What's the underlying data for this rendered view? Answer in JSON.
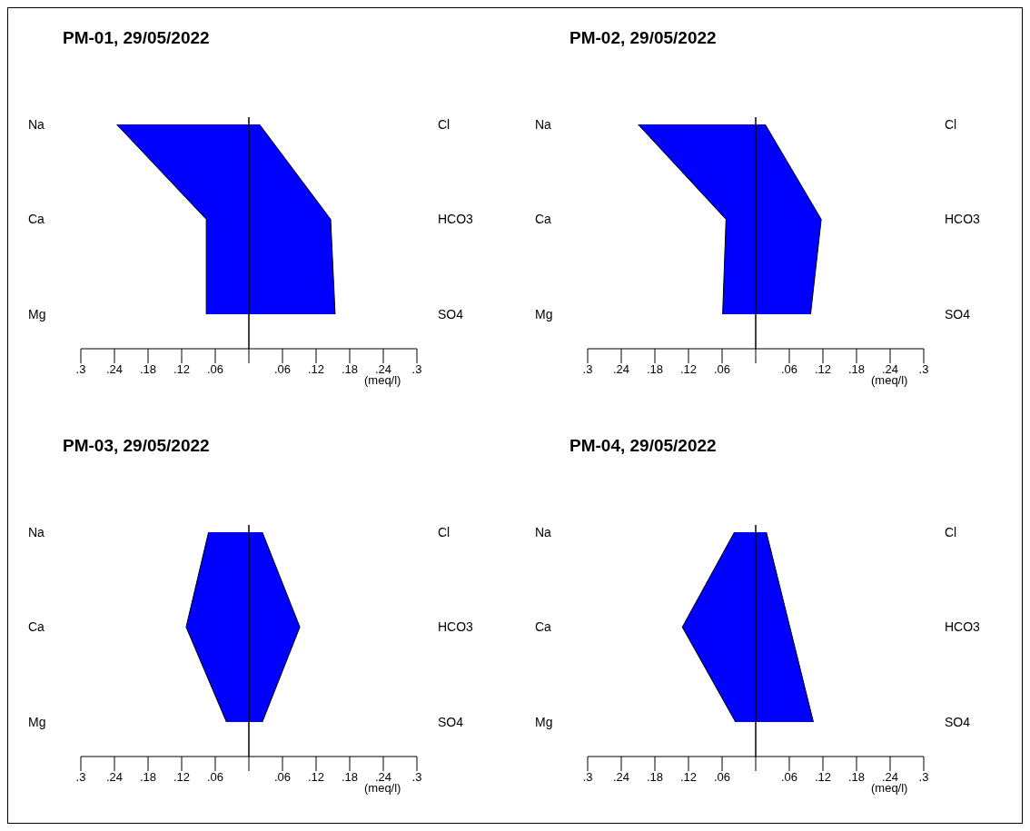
{
  "chart_data": [
    {
      "type": "area",
      "orientation": "horizontal",
      "title": "PM-01, 29/05/2022",
      "categories": [
        "Na",
        "Ca",
        "Mg"
      ],
      "y2_categories": [
        "Cl",
        "HCO3",
        "SO4"
      ],
      "xlabel": "(meq/l)",
      "xlim": [
        -0.3,
        0.3
      ],
      "xticks": [
        {
          "value": -0.3,
          "label": ".3"
        },
        {
          "value": -0.24,
          "label": ".24"
        },
        {
          "value": -0.18,
          "label": ".18"
        },
        {
          "value": -0.12,
          "label": ".12"
        },
        {
          "value": -0.06,
          "label": ".06"
        },
        {
          "value": 0,
          "label": null
        },
        {
          "value": 0.06,
          "label": ".06"
        },
        {
          "value": 0.12,
          "label": ".12"
        },
        {
          "value": 0.18,
          "label": ".18"
        },
        {
          "value": 0.24,
          "label": ".24"
        },
        {
          "value": 0.3,
          "label": ".3"
        }
      ],
      "ref_lines": [
        {
          "axis": "x",
          "value": 0,
          "color": "#000000"
        }
      ],
      "series": [
        {
          "color": "#0000ff",
          "values": [
            -0.236,
            -0.076,
            -0.076
          ]
        },
        {
          "color": "#0000ff",
          "values": [
            0.019,
            0.146,
            0.154
          ]
        }
      ]
    },
    {
      "type": "area",
      "orientation": "horizontal",
      "title": "PM-02, 29/05/2022",
      "categories": [
        "Na",
        "Ca",
        "Mg"
      ],
      "y2_categories": [
        "Cl",
        "HCO3",
        "SO4"
      ],
      "xlabel": "(meq/l)",
      "xlim": [
        -0.3,
        0.3
      ],
      "xticks": [
        {
          "value": -0.3,
          "label": ".3"
        },
        {
          "value": -0.24,
          "label": ".24"
        },
        {
          "value": -0.18,
          "label": ".18"
        },
        {
          "value": -0.12,
          "label": ".12"
        },
        {
          "value": -0.06,
          "label": ".06"
        },
        {
          "value": 0,
          "label": null
        },
        {
          "value": 0.06,
          "label": ".06"
        },
        {
          "value": 0.12,
          "label": ".12"
        },
        {
          "value": 0.18,
          "label": ".18"
        },
        {
          "value": 0.24,
          "label": ".24"
        },
        {
          "value": 0.3,
          "label": ".3"
        }
      ],
      "ref_lines": [
        {
          "axis": "x",
          "value": 0,
          "color": "#000000"
        }
      ],
      "series": [
        {
          "color": "#0000ff",
          "values": [
            -0.21,
            -0.053,
            -0.059
          ]
        },
        {
          "color": "#0000ff",
          "values": [
            0.017,
            0.117,
            0.098
          ]
        }
      ]
    },
    {
      "type": "area",
      "orientation": "horizontal",
      "title": "PM-03, 29/05/2022",
      "categories": [
        "Na",
        "Ca",
        "Mg"
      ],
      "y2_categories": [
        "Cl",
        "HCO3",
        "SO4"
      ],
      "xlabel": "(meq/l)",
      "xlim": [
        -0.3,
        0.3
      ],
      "xticks": [
        {
          "value": -0.3,
          "label": ".3"
        },
        {
          "value": -0.24,
          "label": ".24"
        },
        {
          "value": -0.18,
          "label": ".18"
        },
        {
          "value": -0.12,
          "label": ".12"
        },
        {
          "value": -0.06,
          "label": ".06"
        },
        {
          "value": 0,
          "label": null
        },
        {
          "value": 0.06,
          "label": ".06"
        },
        {
          "value": 0.12,
          "label": ".12"
        },
        {
          "value": 0.18,
          "label": ".18"
        },
        {
          "value": 0.24,
          "label": ".24"
        },
        {
          "value": 0.3,
          "label": ".3"
        }
      ],
      "ref_lines": [
        {
          "axis": "x",
          "value": 0,
          "color": "#000000"
        }
      ],
      "series": [
        {
          "color": "#0000ff",
          "values": [
            -0.072,
            -0.112,
            -0.04
          ]
        },
        {
          "color": "#0000ff",
          "values": [
            0.024,
            0.091,
            0.024
          ]
        }
      ]
    },
    {
      "type": "area",
      "orientation": "horizontal",
      "title": "PM-04, 29/05/2022",
      "categories": [
        "Na",
        "Ca",
        "Mg"
      ],
      "y2_categories": [
        "Cl",
        "HCO3",
        "SO4"
      ],
      "xlabel": "(meq/l)",
      "xlim": [
        -0.3,
        0.3
      ],
      "xticks": [
        {
          "value": -0.3,
          "label": ".3"
        },
        {
          "value": -0.24,
          "label": ".24"
        },
        {
          "value": -0.18,
          "label": ".18"
        },
        {
          "value": -0.12,
          "label": ".12"
        },
        {
          "value": -0.06,
          "label": ".06"
        },
        {
          "value": 0,
          "label": null
        },
        {
          "value": 0.06,
          "label": ".06"
        },
        {
          "value": 0.12,
          "label": ".12"
        },
        {
          "value": 0.18,
          "label": ".18"
        },
        {
          "value": 0.24,
          "label": ".24"
        },
        {
          "value": 0.3,
          "label": ".3"
        }
      ],
      "ref_lines": [
        {
          "axis": "x",
          "value": 0,
          "color": "#000000"
        }
      ],
      "series": [
        {
          "color": "#0000ff",
          "values": [
            -0.038,
            -0.131,
            -0.036
          ]
        },
        {
          "color": "#0000ff",
          "values": [
            0.019,
            0.061,
            0.103
          ]
        }
      ]
    }
  ]
}
